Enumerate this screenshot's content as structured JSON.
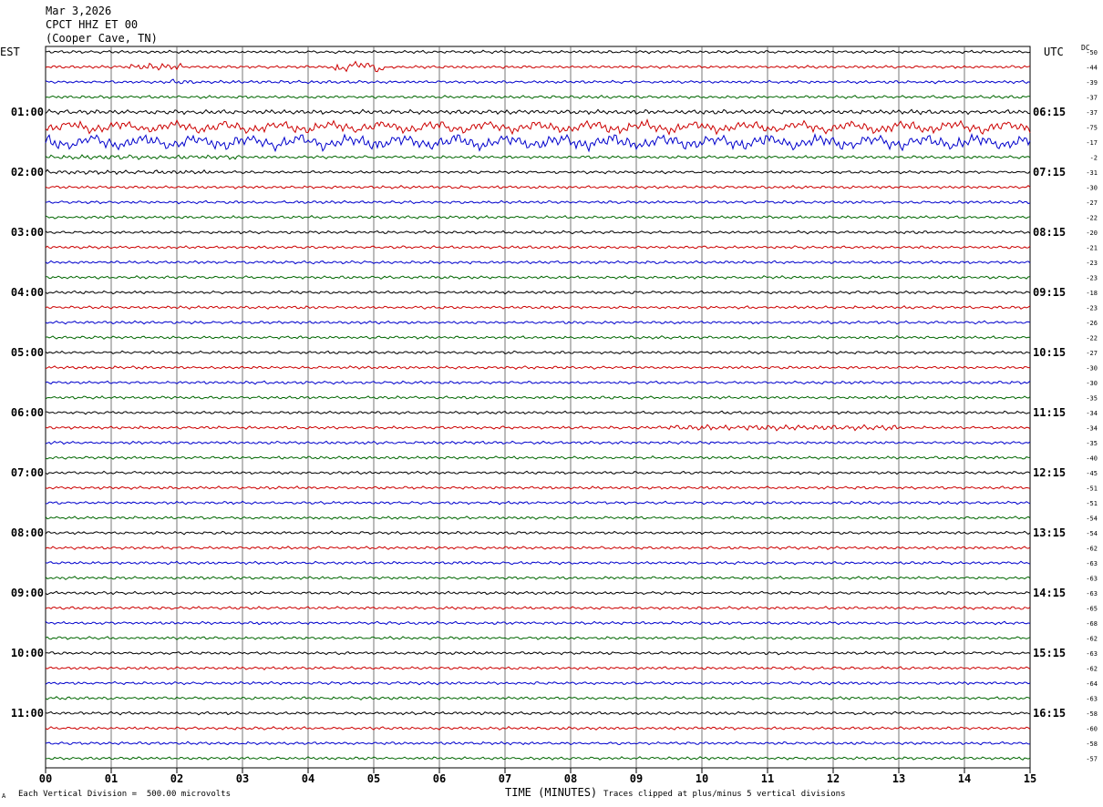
{
  "header": {
    "date": "Mar 3,2026",
    "station": "CPCT HHZ ET 00",
    "location": "(Cooper Cave, TN)"
  },
  "left_axis_label": "EST",
  "right_axis_label": "UTC",
  "dc_label": "DC",
  "footer": {
    "scale_note": "Each Vertical Division =  500.00 microvolts",
    "xlabel": "TIME (MINUTES)",
    "clip_note": "Traces clipped at plus/minus 5 vertical divisions",
    "corner_mark": "A"
  },
  "colors": {
    "trace_cycle": [
      "#000000",
      "#cc0000",
      "#0000cc",
      "#006600"
    ],
    "grid": "#000000"
  },
  "chart_data": {
    "type": "line",
    "title": "",
    "xlabel": "TIME (MINUTES)",
    "xlim": [
      0,
      15
    ],
    "x_ticks": [
      "00",
      "01",
      "02",
      "03",
      "04",
      "05",
      "06",
      "07",
      "08",
      "09",
      "10",
      "11",
      "12",
      "13",
      "14",
      "15"
    ],
    "grid": "vertical lines at every minute",
    "trace_count": 48,
    "est_hour_labels": [
      "01:00",
      "02:00",
      "03:00",
      "04:00",
      "05:00",
      "06:00",
      "07:00",
      "08:00",
      "09:00",
      "10:00",
      "11:00"
    ],
    "utc_hour_labels": [
      "06:15",
      "07:15",
      "08:15",
      "09:15",
      "10:15",
      "11:15",
      "12:15",
      "13:15",
      "14:15",
      "15:15",
      "16:15"
    ],
    "dc_offsets": [
      -50,
      -44,
      -39,
      -37,
      -37,
      -75,
      -17,
      -2,
      -31,
      -30,
      -27,
      -22,
      -20,
      -21,
      -23,
      -23,
      -18,
      -23,
      -26,
      -22,
      -27,
      -30,
      -30,
      -35,
      -34,
      -34,
      -35,
      -40,
      -45,
      -51,
      -51,
      -54,
      -54,
      -62,
      -63,
      -63,
      -63,
      -65,
      -68,
      -62,
      -63,
      -62,
      -64,
      -63,
      -58,
      -60,
      -58,
      -57
    ],
    "activity": [
      {
        "trace": 1,
        "segments": [
          [
            1.2,
            2.1,
            4
          ],
          [
            4.4,
            5.2,
            5
          ]
        ]
      },
      {
        "trace": 2,
        "segments": [
          [
            1.9,
            2.3,
            3
          ]
        ]
      },
      {
        "trace": 4,
        "segments": [
          [
            0,
            15,
            2.5
          ]
        ]
      },
      {
        "trace": 5,
        "segments": [
          [
            0,
            15,
            5
          ]
        ]
      },
      {
        "trace": 6,
        "segments": [
          [
            0,
            15,
            6
          ]
        ]
      },
      {
        "trace": 7,
        "segments": [
          [
            0,
            3,
            2.5
          ]
        ]
      },
      {
        "trace": 8,
        "segments": [
          [
            0,
            2.5,
            2.5
          ]
        ]
      },
      {
        "trace": 25,
        "segments": [
          [
            9.5,
            13,
            3
          ]
        ]
      }
    ]
  }
}
